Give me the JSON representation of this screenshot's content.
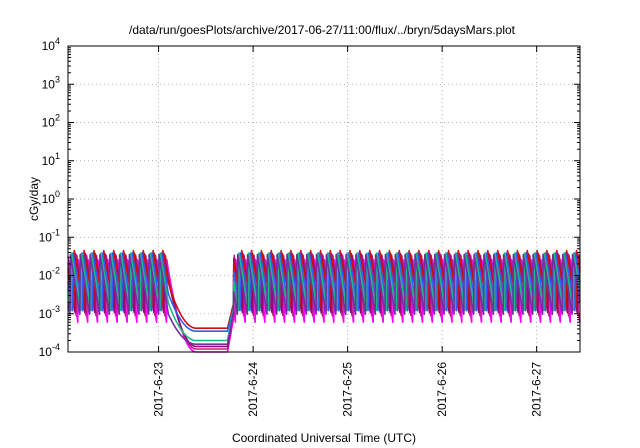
{
  "chart_data": {
    "type": "line",
    "title": "/data/run/goesPlots/archive/2017-06-27/11:00/flux/../bryn/5daysMars.plot",
    "xlabel": "Coordinated Universal Time (UTC)",
    "ylabel": "cGy/day",
    "yscale": "log",
    "ylim": [
      0.0001,
      10000
    ],
    "xlim": [
      "2017-06-22 01:00",
      "2017-06-27 11:00"
    ],
    "grid": true,
    "legend": "none",
    "x_ticks": [
      "2017-6-23",
      "2017-6-24",
      "2017-6-25",
      "2017-6-26",
      "2017-6-27"
    ],
    "y_ticks": [
      {
        "base": "10",
        "exp": "-4"
      },
      {
        "base": "10",
        "exp": "-3"
      },
      {
        "base": "10",
        "exp": "-2"
      },
      {
        "base": "10",
        "exp": "-1"
      },
      {
        "base": "10",
        "exp": "0"
      },
      {
        "base": "10",
        "exp": "1"
      },
      {
        "base": "10",
        "exp": "2"
      },
      {
        "base": "10",
        "exp": "3"
      },
      {
        "base": "10",
        "exp": "4"
      }
    ],
    "pattern": {
      "cycle_hours": 2.5,
      "gap_start": "2017-06-23 02:30",
      "gap_recovery": "2017-06-23 17:30",
      "gap_end": "2017-06-23 19:00"
    },
    "series": [
      {
        "color": "#ff00ff",
        "peak": 0.03,
        "trough": 0.0006,
        "gap_level": 0.0001
      },
      {
        "color": "#bb2288",
        "peak": 0.035,
        "trough": 0.0008,
        "gap_level": 0.00012
      },
      {
        "color": "#990077",
        "peak": 0.04,
        "trough": 0.001,
        "gap_level": 0.00014
      },
      {
        "color": "#cc1010",
        "peak": 0.05,
        "trough": 0.0015,
        "gap_level": 0.00042
      },
      {
        "color": "#3060ee",
        "peak": 0.045,
        "trough": 0.0012,
        "gap_level": 0.00035
      },
      {
        "color": "#18bb88",
        "peak": 0.04,
        "trough": 0.0011,
        "gap_level": 0.0002
      },
      {
        "color": "#7030a0",
        "peak": 0.038,
        "trough": 0.0009,
        "gap_level": 0.00016
      }
    ]
  }
}
